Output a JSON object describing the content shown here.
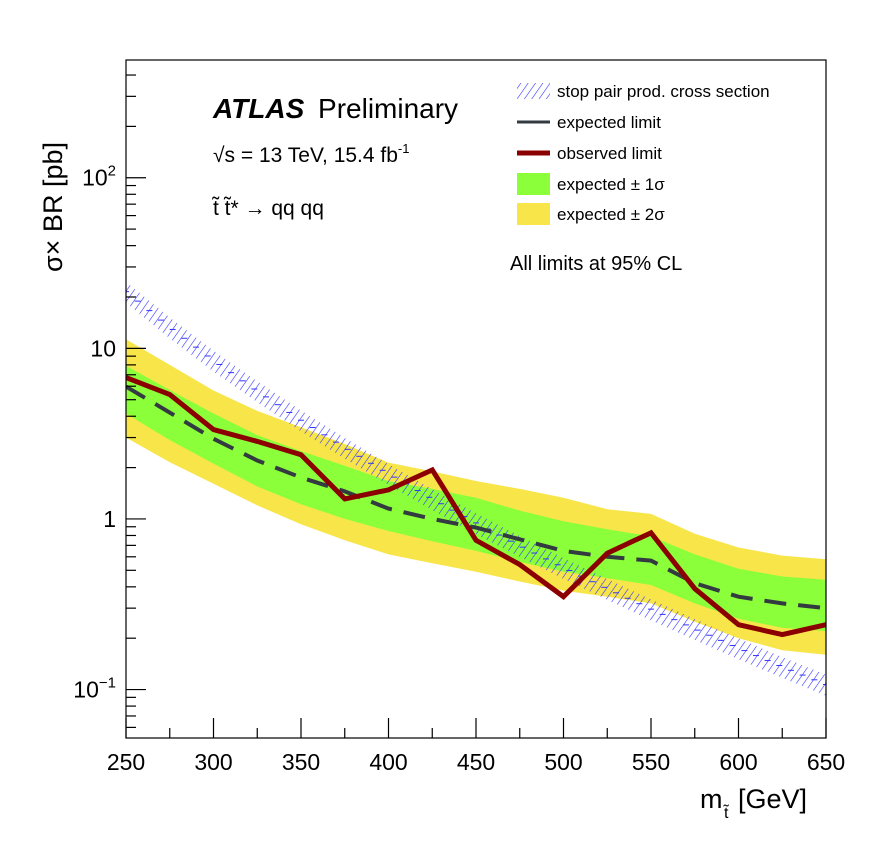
{
  "chart_data": {
    "type": "line",
    "title": "",
    "experiment_label": "ATLAS",
    "experiment_sublabel": "Preliminary",
    "energy_label": "√s = 13 TeV, 15.4 fb",
    "energy_label_sup": "-1",
    "process_label": "t̃ t̃* → qq qq",
    "cl_note": "All limits at 95% CL",
    "xlabel": "m",
    "xlabel_sub": "t̃",
    "xlabel_unit": "[GeV]",
    "ylabel": "σ× BR [pb]",
    "xlim": [
      250,
      650
    ],
    "ylim": [
      0.052,
      490
    ],
    "yscale": "log",
    "x_ticks": [
      250,
      300,
      350,
      400,
      450,
      500,
      550,
      600,
      650
    ],
    "x_tick_labels": [
      "250",
      "300",
      "350",
      "400",
      "450",
      "500",
      "550",
      "600",
      "650"
    ],
    "y_ticks": [
      0.1,
      1,
      10,
      100
    ],
    "y_tick_labels": [
      {
        "base": "10",
        "exp": "−1"
      },
      {
        "base": "1",
        "exp": ""
      },
      {
        "base": "10",
        "exp": ""
      },
      {
        "base": "10",
        "exp": "2"
      }
    ],
    "legend_position": "top-right",
    "x": [
      250,
      275,
      300,
      325,
      350,
      375,
      400,
      425,
      450,
      475,
      500,
      525,
      550,
      575,
      600,
      625,
      650
    ],
    "series": [
      {
        "name": "stop pair prod. cross section",
        "kind": "hatched-band",
        "color": "#3333ff",
        "values": [
          21.5,
          13.3,
          8.5,
          5.62,
          3.79,
          2.62,
          1.84,
          1.31,
          0.948,
          0.697,
          0.518,
          0.39,
          0.296,
          0.227,
          0.175,
          0.136,
          0.107
        ],
        "rel_uncertainty": 0.14
      },
      {
        "name": "expected limit",
        "kind": "dashed-line",
        "color": "#333a40",
        "values": [
          5.97,
          4.2,
          2.95,
          2.2,
          1.75,
          1.45,
          1.15,
          1.0,
          0.89,
          0.76,
          0.65,
          0.6,
          0.57,
          0.42,
          0.35,
          0.32,
          0.3
        ]
      },
      {
        "name": "observed limit",
        "kind": "line",
        "color": "#8b0000",
        "values": [
          6.75,
          5.36,
          3.34,
          2.85,
          2.38,
          1.31,
          1.48,
          1.94,
          0.75,
          0.54,
          0.35,
          0.63,
          0.83,
          0.39,
          0.24,
          0.21,
          0.24
        ]
      },
      {
        "name": "expected ± 1σ",
        "kind": "band",
        "color": "#8bff3a",
        "upper": [
          7.9,
          5.7,
          4.15,
          3.1,
          2.5,
          2.05,
          1.67,
          1.5,
          1.33,
          1.12,
          0.97,
          0.87,
          0.79,
          0.62,
          0.51,
          0.46,
          0.44
        ],
        "lower": [
          4.15,
          2.9,
          2.11,
          1.55,
          1.22,
          1.0,
          0.85,
          0.74,
          0.65,
          0.56,
          0.49,
          0.45,
          0.41,
          0.32,
          0.26,
          0.23,
          0.22
        ]
      },
      {
        "name": "expected ± 2σ",
        "kind": "band",
        "color": "#f8e54a",
        "upper": [
          11.3,
          8.0,
          5.66,
          4.3,
          3.45,
          2.75,
          2.14,
          1.9,
          1.67,
          1.5,
          1.33,
          1.14,
          1.07,
          0.82,
          0.68,
          0.61,
          0.58
        ],
        "lower": [
          3.0,
          2.15,
          1.61,
          1.2,
          0.93,
          0.75,
          0.62,
          0.55,
          0.49,
          0.43,
          0.38,
          0.35,
          0.32,
          0.25,
          0.2,
          0.17,
          0.16
        ]
      }
    ]
  }
}
